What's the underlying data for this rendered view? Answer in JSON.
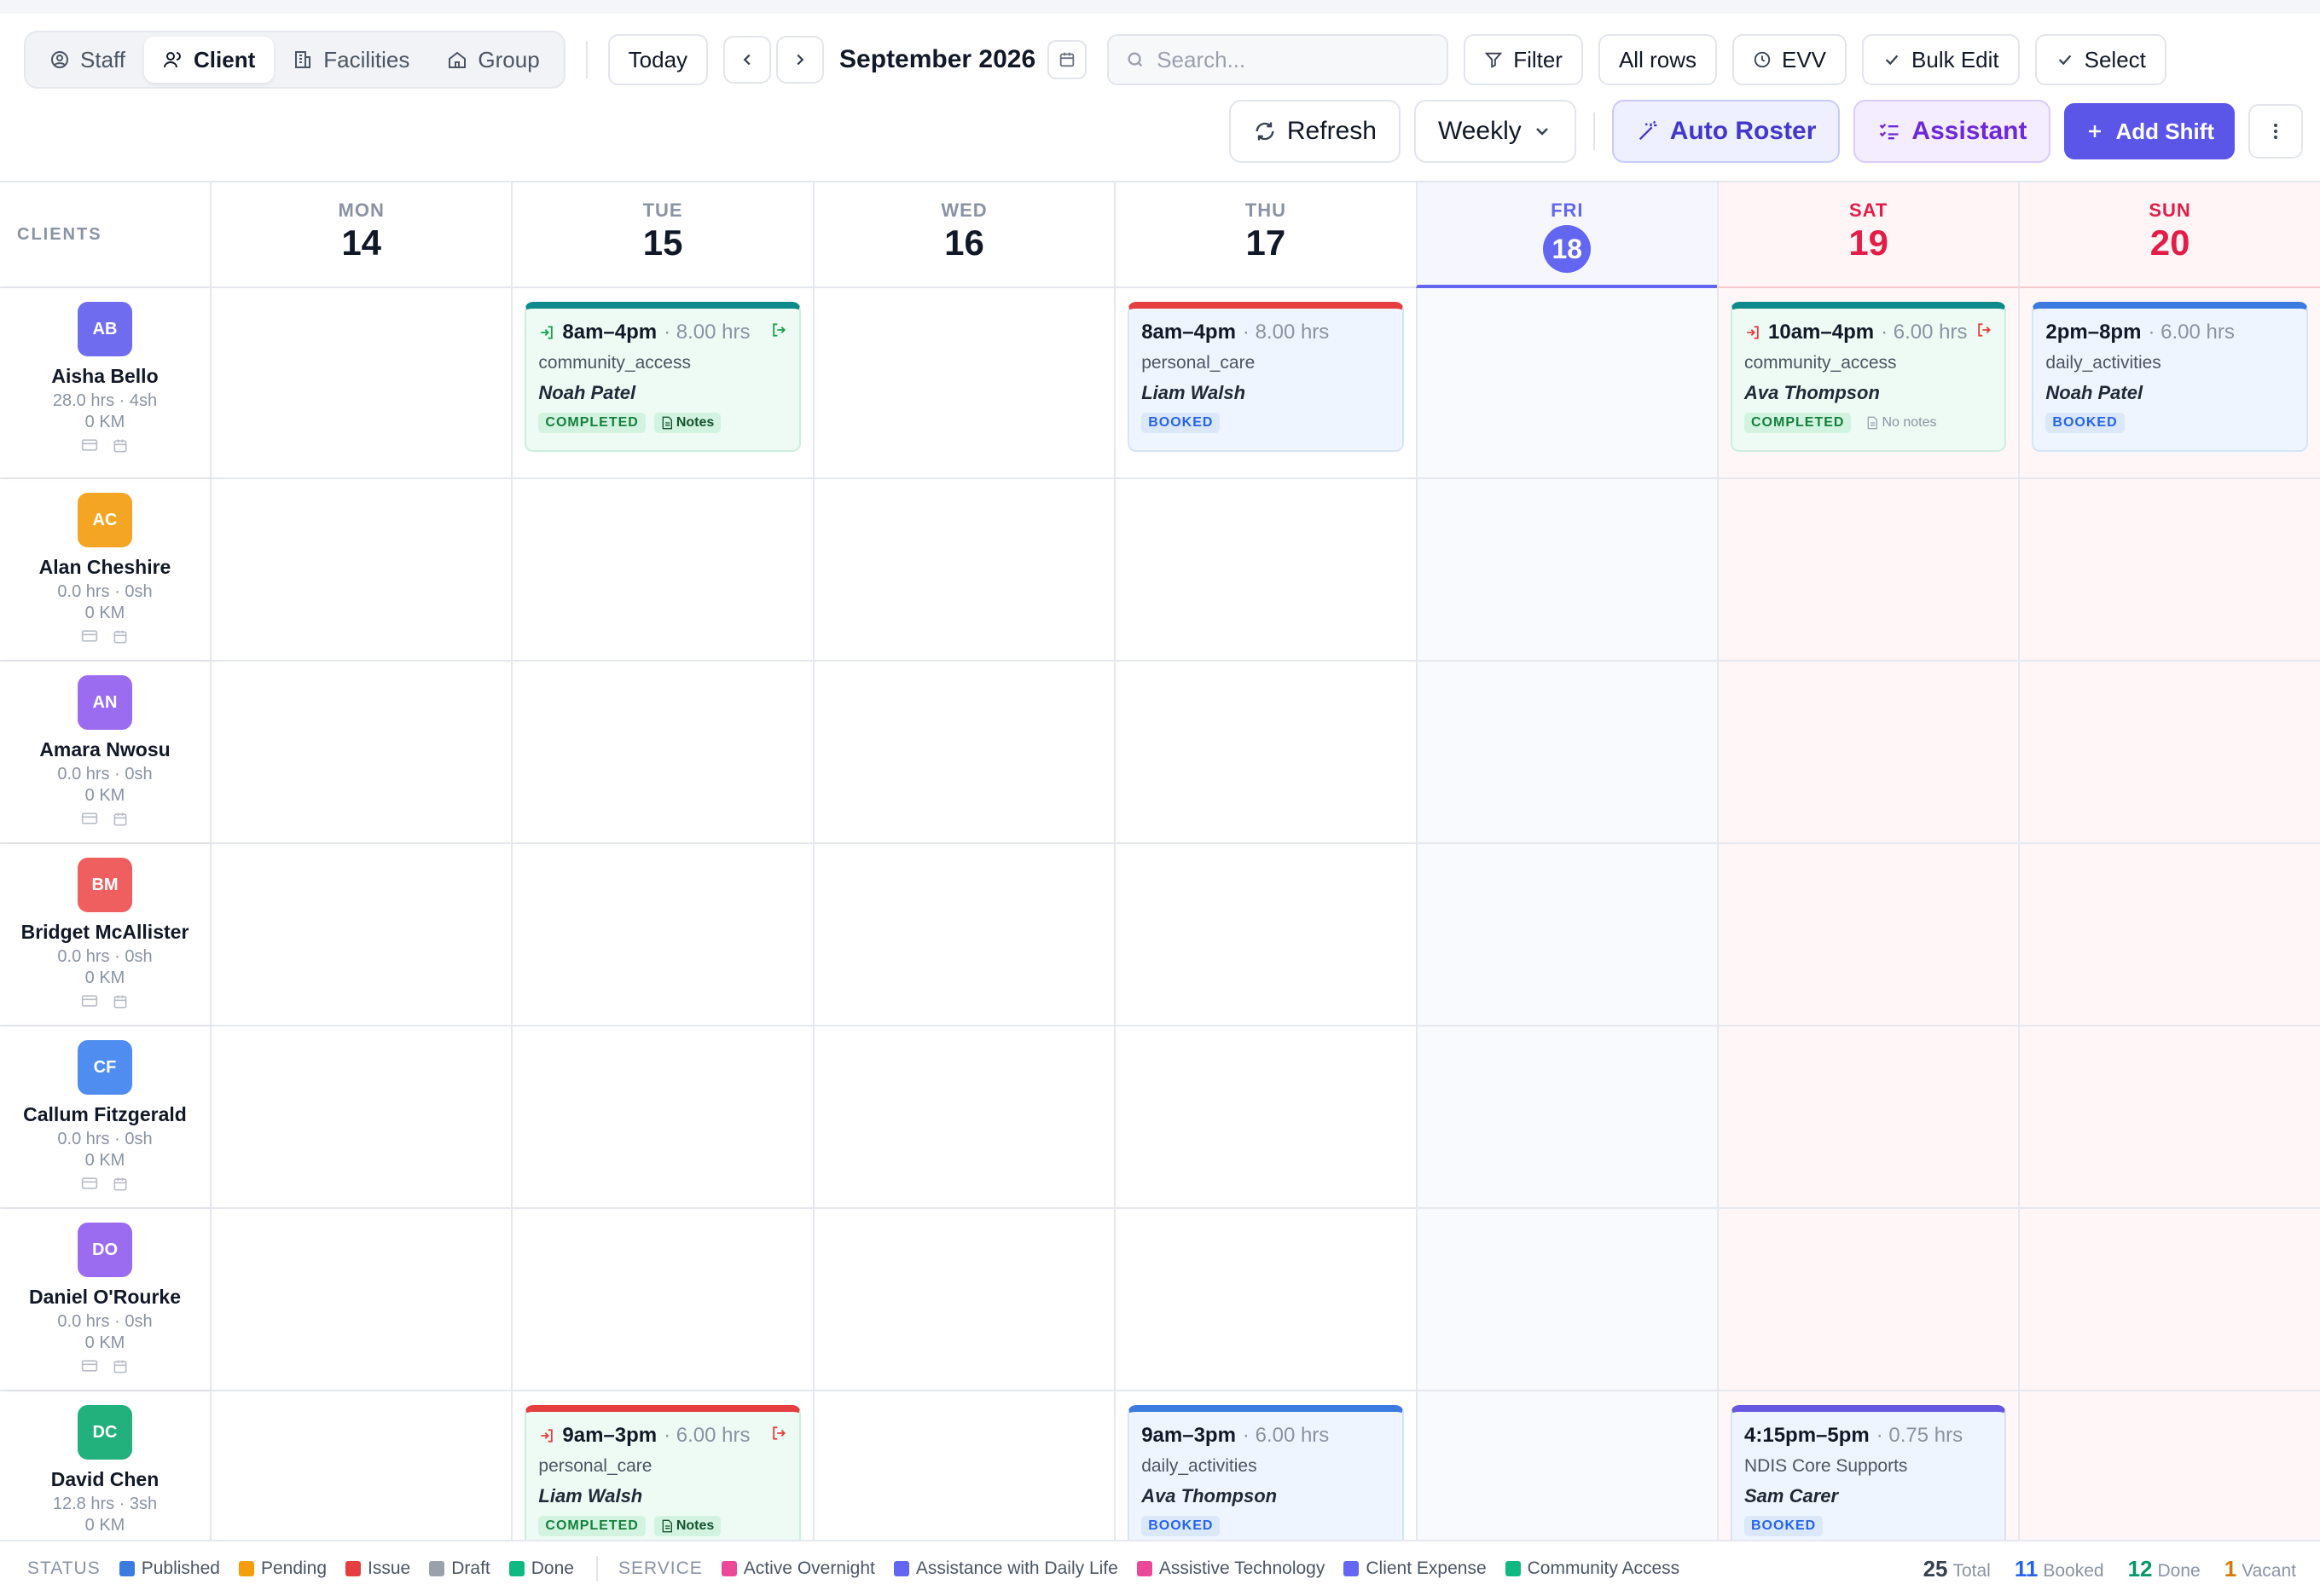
{
  "toolbar": {
    "views": [
      {
        "label": "Staff",
        "icon": "user-circle-icon",
        "active": false
      },
      {
        "label": "Client",
        "icon": "users-icon",
        "active": true
      },
      {
        "label": "Facilities",
        "icon": "building-icon",
        "active": false
      },
      {
        "label": "Group",
        "icon": "home-icon",
        "active": false
      }
    ],
    "today_label": "Today",
    "month_label": "September 2026",
    "search_placeholder": "Search...",
    "filter_label": "Filter",
    "rows_label": "All rows",
    "evv_label": "EVV",
    "bulk_edit_label": "Bulk Edit",
    "select_label": "Select",
    "refresh_label": "Refresh",
    "view_mode": "Weekly",
    "auto_roster_label": "Auto Roster",
    "assistant_label": "Assistant",
    "add_shift_label": "Add Shift"
  },
  "grid": {
    "clients_header": "CLIENTS",
    "days": [
      {
        "name": "MON",
        "date": "14",
        "weekend": false,
        "today": false
      },
      {
        "name": "TUE",
        "date": "15",
        "weekend": false,
        "today": false
      },
      {
        "name": "WED",
        "date": "16",
        "weekend": false,
        "today": false
      },
      {
        "name": "THU",
        "date": "17",
        "weekend": false,
        "today": false
      },
      {
        "name": "FRI",
        "date": "18",
        "weekend": false,
        "today": true
      },
      {
        "name": "SAT",
        "date": "19",
        "weekend": true,
        "today": false
      },
      {
        "name": "SUN",
        "date": "20",
        "weekend": true,
        "today": false
      }
    ],
    "clients": [
      {
        "initials": "AB",
        "name": "Aisha Bello",
        "meta": "28.0 hrs · 4sh",
        "km": "0 KM",
        "color": "#6f6cf0"
      },
      {
        "initials": "AC",
        "name": "Alan Cheshire",
        "meta": "0.0 hrs · 0sh",
        "km": "0 KM",
        "color": "#f5a524"
      },
      {
        "initials": "AN",
        "name": "Amara Nwosu",
        "meta": "0.0 hrs · 0sh",
        "km": "0 KM",
        "color": "#9b6cf0"
      },
      {
        "initials": "BM",
        "name": "Bridget McAllister",
        "meta": "0.0 hrs · 0sh",
        "km": "0 KM",
        "color": "#ef5f5f"
      },
      {
        "initials": "CF",
        "name": "Callum Fitzgerald",
        "meta": "0.0 hrs · 0sh",
        "km": "0 KM",
        "color": "#4f8ef0"
      },
      {
        "initials": "DO",
        "name": "Daniel O'Rourke",
        "meta": "0.0 hrs · 0sh",
        "km": "0 KM",
        "color": "#9b6cf0"
      },
      {
        "initials": "DC",
        "name": "David Chen",
        "meta": "12.8 hrs · 3sh",
        "km": "0 KM",
        "color": "#22b07d"
      }
    ],
    "shifts": [
      {
        "row": 0,
        "day": 1,
        "time": "8am–4pm",
        "hrs": "· 8.00 hrs",
        "service": "community_access",
        "staff": "Noah Patel",
        "status": "COMPLETED",
        "notes": "Notes",
        "bg": "green",
        "top": "teal",
        "clock_in": "green",
        "clock_out": "green"
      },
      {
        "row": 0,
        "day": 3,
        "time": "8am–4pm",
        "hrs": "· 8.00 hrs",
        "service": "personal_care",
        "staff": "Liam Walsh",
        "status": "BOOKED",
        "notes": "",
        "bg": "blue",
        "top": "red",
        "clock_in": "",
        "clock_out": ""
      },
      {
        "row": 0,
        "day": 5,
        "time": "10am–4pm",
        "hrs": "· 6.00 hrs",
        "service": "community_access",
        "staff": "Ava Thompson",
        "status": "COMPLETED",
        "notes": "No notes",
        "bg": "green",
        "top": "teal",
        "clock_in": "red",
        "clock_out": "red"
      },
      {
        "row": 0,
        "day": 6,
        "time": "2pm–8pm",
        "hrs": "· 6.00 hrs",
        "service": "daily_activities",
        "staff": "Noah Patel",
        "status": "BOOKED",
        "notes": "",
        "bg": "blue",
        "top": "blue",
        "clock_in": "",
        "clock_out": ""
      },
      {
        "row": 6,
        "day": 1,
        "time": "9am–3pm",
        "hrs": "· 6.00 hrs",
        "service": "personal_care",
        "staff": "Liam Walsh",
        "status": "COMPLETED",
        "notes": "Notes",
        "bg": "green",
        "top": "red",
        "clock_in": "red",
        "clock_out": "red"
      },
      {
        "row": 6,
        "day": 3,
        "time": "9am–3pm",
        "hrs": "· 6.00 hrs",
        "service": "daily_activities",
        "staff": "Ava Thompson",
        "status": "BOOKED",
        "notes": "",
        "bg": "blue",
        "top": "blue",
        "clock_in": "",
        "clock_out": ""
      },
      {
        "row": 6,
        "day": 5,
        "time": "4:15pm–5pm",
        "hrs": "· 0.75 hrs",
        "service": "NDIS Core Supports",
        "staff": "Sam Carer",
        "status": "BOOKED",
        "notes": "",
        "bg": "blue",
        "top": "purple",
        "clock_in": "",
        "clock_out": ""
      }
    ]
  },
  "legend": {
    "status_title": "STATUS",
    "status_items": [
      {
        "label": "Published",
        "color": "#3b7be0"
      },
      {
        "label": "Pending",
        "color": "#f59e0b"
      },
      {
        "label": "Issue",
        "color": "#e53e3e"
      },
      {
        "label": "Draft",
        "color": "#9aa1ad"
      },
      {
        "label": "Done",
        "color": "#10b981"
      }
    ],
    "service_title": "SERVICE",
    "service_items": [
      {
        "label": "Active Overnight",
        "color": "#ec4899"
      },
      {
        "label": "Assistance with Daily Life",
        "color": "#6366f1"
      },
      {
        "label": "Assistive Technology",
        "color": "#ec4899"
      },
      {
        "label": "Client Expense",
        "color": "#6366f1"
      },
      {
        "label": "Community Access",
        "color": "#10b981"
      }
    ],
    "totals": [
      {
        "value": "25",
        "label": "Total",
        "color": "#374151"
      },
      {
        "value": "11",
        "label": "Booked",
        "color": "#2563eb"
      },
      {
        "value": "12",
        "label": "Done",
        "color": "#059669"
      },
      {
        "value": "1",
        "label": "Vacant",
        "color": "#d97706"
      }
    ]
  }
}
